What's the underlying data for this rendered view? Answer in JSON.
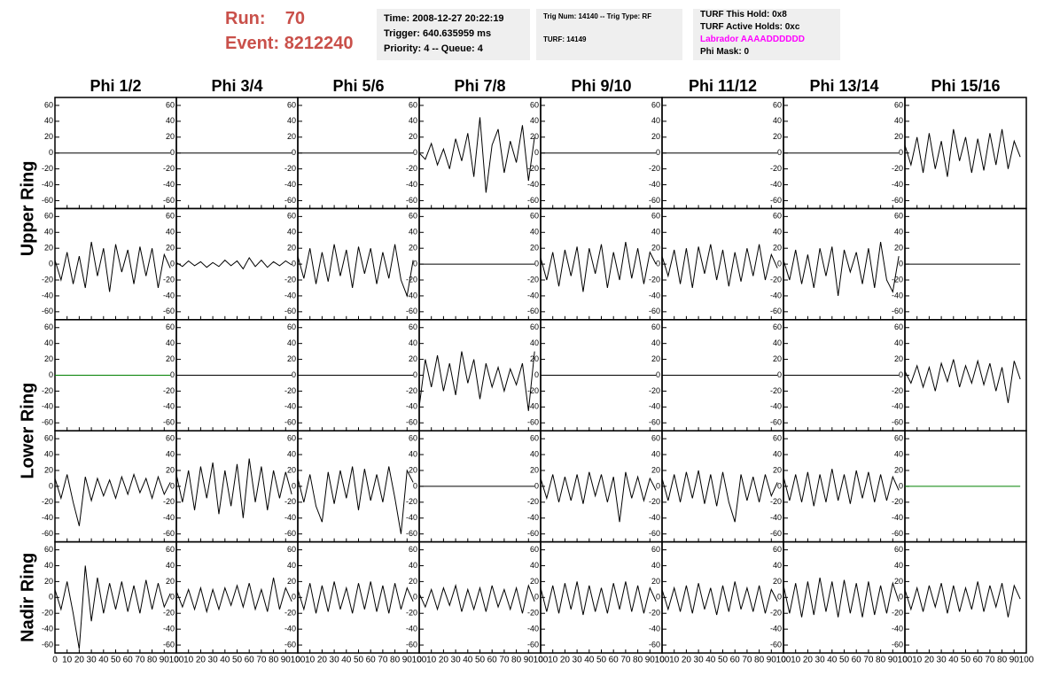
{
  "header": {
    "run_label": "Run:",
    "run": "70",
    "event_label": "Event:",
    "event": "8212240"
  },
  "info": {
    "time": "Time: 2008-12-27 20:22:19",
    "trigger": "Trigger: 640.635959 ms",
    "priority": "Priority: 4 -- Queue: 4",
    "trig_num": "Trig Num: 14140 -- Trig Type: RF",
    "turf": "TURF: 14149",
    "this_hold": "TURF This Hold: 0x8",
    "active_holds": "TURF Active Holds: 0xc",
    "labrador": "Labrador AAAADDDDDD",
    "phi_mask": "Phi Mask: 0"
  },
  "chart_data": {
    "type": "line",
    "columns": [
      "Phi 1/2",
      "Phi 3/4",
      "Phi 5/6",
      "Phi 7/8",
      "Phi 9/10",
      "Phi 11/12",
      "Phi 13/14",
      "Phi 15/16"
    ],
    "ring_labels": [
      "Upper Ring",
      "Lower Ring",
      "Nadir Ring"
    ],
    "xlim": [
      0,
      100
    ],
    "ylim": [
      -70,
      70
    ],
    "xticks": [
      0,
      10,
      20,
      30,
      40,
      50,
      60,
      70,
      80,
      90,
      100
    ],
    "yticks": [
      -60,
      -40,
      -20,
      0,
      20,
      40,
      60
    ],
    "x": [
      0,
      5,
      10,
      15,
      20,
      25,
      30,
      35,
      40,
      45,
      50,
      55,
      60,
      65,
      70,
      75,
      80,
      85,
      90,
      95
    ],
    "panels": [
      [
        {
          "color": "#000000",
          "values": [
            0,
            0,
            0,
            0,
            0,
            0,
            0,
            0,
            0,
            0,
            0,
            0,
            0,
            0,
            0,
            0,
            0,
            0,
            0,
            0
          ]
        },
        {
          "color": "#000000",
          "values": [
            0,
            0,
            0,
            0,
            0,
            0,
            0,
            0,
            0,
            0,
            0,
            0,
            0,
            0,
            0,
            0,
            0,
            0,
            0,
            0
          ]
        },
        {
          "color": "#000000",
          "values": [
            0,
            0,
            0,
            0,
            0,
            0,
            0,
            0,
            0,
            0,
            0,
            0,
            0,
            0,
            0,
            0,
            0,
            0,
            0,
            0
          ]
        },
        {
          "color": "#000000",
          "values": [
            0,
            -8,
            12,
            -15,
            5,
            -20,
            18,
            -10,
            25,
            -30,
            45,
            -50,
            10,
            30,
            -25,
            15,
            -12,
            35,
            -35,
            20
          ]
        },
        {
          "color": "#000000",
          "values": [
            0,
            0,
            0,
            0,
            0,
            0,
            0,
            0,
            0,
            0,
            0,
            0,
            0,
            0,
            0,
            0,
            0,
            0,
            0,
            0
          ]
        },
        {
          "color": "#000000",
          "values": [
            0,
            0,
            0,
            0,
            0,
            0,
            0,
            0,
            0,
            0,
            0,
            0,
            0,
            0,
            0,
            0,
            0,
            0,
            0,
            0
          ]
        },
        {
          "color": "#000000",
          "values": [
            0,
            0,
            0,
            0,
            0,
            0,
            0,
            0,
            0,
            0,
            0,
            0,
            0,
            0,
            0,
            0,
            0,
            0,
            0,
            0
          ]
        },
        {
          "color": "#000000",
          "values": [
            10,
            -15,
            20,
            -25,
            25,
            -20,
            15,
            -30,
            30,
            -10,
            20,
            -25,
            18,
            -22,
            25,
            -15,
            30,
            -20,
            15,
            -5
          ]
        }
      ],
      [
        {
          "color": "#000000",
          "values": [
            5,
            -20,
            15,
            -25,
            10,
            -30,
            28,
            -15,
            20,
            -35,
            25,
            -10,
            18,
            -25,
            22,
            -15,
            20,
            -30,
            12,
            -5
          ]
        },
        {
          "color": "#000000",
          "values": [
            2,
            -3,
            4,
            -2,
            3,
            -4,
            2,
            -3,
            5,
            -2,
            4,
            -6,
            8,
            -3,
            5,
            -4,
            3,
            -2,
            4,
            -1
          ]
        },
        {
          "color": "#000000",
          "values": [
            10,
            -18,
            20,
            -25,
            15,
            -22,
            25,
            -15,
            18,
            -30,
            22,
            -12,
            20,
            -25,
            15,
            -18,
            25,
            -20,
            -40,
            5
          ]
        },
        {
          "color": "#000000",
          "values": [
            0,
            0,
            0,
            0,
            0,
            0,
            0,
            0,
            0,
            0,
            0,
            0,
            0,
            0,
            0,
            0,
            0,
            0,
            0,
            0
          ]
        },
        {
          "color": "#000000",
          "values": [
            8,
            -20,
            15,
            -28,
            18,
            -15,
            22,
            -35,
            20,
            -12,
            25,
            -30,
            15,
            -20,
            28,
            -18,
            20,
            -25,
            15,
            0
          ]
        },
        {
          "color": "#000000",
          "values": [
            10,
            -15,
            18,
            -25,
            20,
            -30,
            22,
            -12,
            25,
            -20,
            18,
            -28,
            15,
            -22,
            20,
            -15,
            25,
            -20,
            12,
            -5
          ]
        },
        {
          "color": "#000000",
          "values": [
            5,
            -20,
            18,
            -25,
            12,
            -30,
            20,
            -15,
            22,
            -40,
            18,
            -10,
            15,
            -25,
            20,
            -30,
            28,
            -20,
            -35,
            10
          ]
        },
        {
          "color": "#000000",
          "values": [
            0,
            0,
            0,
            0,
            0,
            0,
            0,
            0,
            0,
            0,
            0,
            0,
            0,
            0,
            0,
            0,
            0,
            0,
            0,
            0
          ]
        }
      ],
      [
        {
          "color": "#008000",
          "values": [
            0,
            0,
            0,
            0,
            0,
            0,
            0,
            0,
            0,
            0,
            0,
            0,
            0,
            0,
            0,
            0,
            0,
            0,
            0,
            0
          ]
        },
        {
          "color": "#000000",
          "values": [
            0,
            0,
            0,
            0,
            0,
            0,
            0,
            0,
            0,
            0,
            0,
            0,
            0,
            0,
            0,
            0,
            0,
            0,
            0,
            0
          ]
        },
        {
          "color": "#000000",
          "values": [
            0,
            0,
            0,
            0,
            0,
            0,
            0,
            0,
            0,
            0,
            0,
            0,
            0,
            0,
            0,
            0,
            0,
            0,
            0,
            0
          ]
        },
        {
          "color": "#000000",
          "values": [
            -40,
            20,
            -15,
            25,
            -20,
            15,
            -25,
            30,
            -10,
            20,
            -30,
            15,
            -15,
            10,
            -20,
            8,
            -12,
            15,
            -45,
            30
          ]
        },
        {
          "color": "#000000",
          "values": [
            0,
            0,
            0,
            0,
            0,
            0,
            0,
            0,
            0,
            0,
            0,
            0,
            0,
            0,
            0,
            0,
            0,
            0,
            0,
            0
          ]
        },
        {
          "color": "#000000",
          "values": [
            0,
            0,
            0,
            0,
            0,
            0,
            0,
            0,
            0,
            0,
            0,
            0,
            0,
            0,
            0,
            0,
            0,
            0,
            0,
            0
          ]
        },
        {
          "color": "#000000",
          "values": [
            0,
            0,
            0,
            0,
            0,
            0,
            0,
            0,
            0,
            0,
            0,
            0,
            0,
            0,
            0,
            0,
            0,
            0,
            0,
            0
          ]
        },
        {
          "color": "#000000",
          "values": [
            5,
            -10,
            12,
            -15,
            10,
            -20,
            15,
            -8,
            20,
            -15,
            12,
            -10,
            18,
            -12,
            15,
            -20,
            10,
            -35,
            18,
            -5
          ]
        }
      ],
      [
        {
          "color": "#000000",
          "values": [
            10,
            -15,
            15,
            -20,
            -50,
            12,
            -18,
            10,
            -12,
            8,
            -15,
            12,
            -10,
            15,
            -8,
            10,
            -15,
            12,
            -10,
            5
          ]
        },
        {
          "color": "#000000",
          "values": [
            15,
            -20,
            20,
            -30,
            25,
            -15,
            30,
            -35,
            20,
            -25,
            28,
            -40,
            35,
            -20,
            25,
            -30,
            20,
            -15,
            18,
            -10
          ]
        },
        {
          "color": "#000000",
          "values": [
            10,
            -20,
            15,
            -25,
            -45,
            18,
            -22,
            20,
            -15,
            25,
            -30,
            22,
            -18,
            15,
            -20,
            25,
            -15,
            -60,
            20,
            5
          ]
        },
        {
          "color": "#000000",
          "values": [
            0,
            0,
            0,
            0,
            0,
            0,
            0,
            0,
            0,
            0,
            0,
            0,
            0,
            0,
            0,
            0,
            0,
            0,
            0,
            0
          ]
        },
        {
          "color": "#000000",
          "values": [
            10,
            -15,
            15,
            -20,
            12,
            -18,
            15,
            -22,
            18,
            -12,
            15,
            -20,
            12,
            -45,
            18,
            -15,
            12,
            -18,
            10,
            -5
          ]
        },
        {
          "color": "#000000",
          "values": [
            10,
            -18,
            15,
            -20,
            18,
            -15,
            20,
            -22,
            15,
            -25,
            18,
            -20,
            -45,
            15,
            -18,
            12,
            -20,
            15,
            -12,
            5
          ]
        },
        {
          "color": "#000000",
          "values": [
            12,
            -18,
            15,
            -20,
            18,
            -25,
            15,
            -20,
            22,
            -18,
            15,
            -22,
            20,
            -15,
            18,
            -20,
            15,
            -18,
            12,
            -5
          ]
        },
        {
          "color": "#008000",
          "values": [
            0,
            0,
            0,
            0,
            0,
            0,
            0,
            0,
            0,
            0,
            0,
            0,
            0,
            0,
            0,
            0,
            0,
            0,
            0,
            0
          ]
        }
      ],
      [
        {
          "color": "#000000",
          "values": [
            10,
            -15,
            20,
            -20,
            -65,
            40,
            -30,
            25,
            -20,
            18,
            -15,
            20,
            -18,
            15,
            -20,
            22,
            -15,
            18,
            -12,
            5
          ]
        },
        {
          "color": "#000000",
          "values": [
            8,
            -12,
            10,
            -15,
            12,
            -18,
            10,
            -15,
            12,
            -10,
            15,
            -12,
            18,
            -15,
            10,
            -18,
            25,
            -15,
            12,
            -5
          ]
        },
        {
          "color": "#000000",
          "values": [
            10,
            -15,
            18,
            -20,
            15,
            -18,
            20,
            -15,
            12,
            -20,
            18,
            -15,
            20,
            -18,
            15,
            -20,
            18,
            -15,
            12,
            -5
          ]
        },
        {
          "color": "#000000",
          "values": [
            5,
            -12,
            10,
            -15,
            12,
            -10,
            15,
            -18,
            10,
            -15,
            12,
            -18,
            15,
            -12,
            10,
            -15,
            12,
            -20,
            15,
            -5
          ]
        },
        {
          "color": "#000000",
          "values": [
            12,
            -18,
            15,
            -20,
            18,
            -15,
            20,
            -22,
            15,
            -18,
            12,
            -20,
            18,
            -15,
            20,
            -18,
            15,
            -20,
            12,
            -5
          ]
        },
        {
          "color": "#000000",
          "values": [
            10,
            -15,
            12,
            -18,
            15,
            -20,
            18,
            -15,
            12,
            -22,
            15,
            -18,
            20,
            -15,
            12,
            -18,
            15,
            -20,
            10,
            -5
          ]
        },
        {
          "color": "#000000",
          "values": [
            15,
            -20,
            18,
            -25,
            20,
            -22,
            25,
            -18,
            20,
            -25,
            22,
            -20,
            18,
            -25,
            20,
            -22,
            15,
            -20,
            18,
            -5
          ]
        },
        {
          "color": "#000000",
          "values": [
            10,
            -15,
            12,
            -18,
            15,
            -12,
            18,
            -20,
            15,
            -18,
            12,
            -15,
            20,
            -18,
            15,
            -12,
            18,
            -25,
            15,
            -2
          ]
        }
      ]
    ]
  }
}
